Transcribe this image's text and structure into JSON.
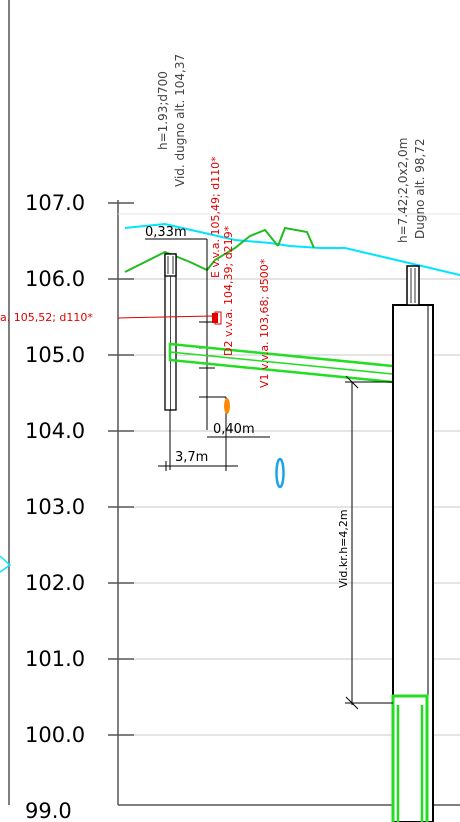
{
  "axis": {
    "ticks": [
      "107.0",
      "106.0",
      "105.0",
      "104.0",
      "103.0",
      "102.0",
      "101.0",
      "100.0",
      "99.0"
    ]
  },
  "labels": {
    "manhole_left_1": "h=1.93;d700",
    "manhole_left_2": "Vid. dugno alt. 104,37",
    "manhole_right_1": "h=7.42;2,0x2,0m",
    "manhole_right_2": "Dugno alt. 98,72",
    "dim_033": "0,33m",
    "dim_040": "0,40m",
    "dim_37": "3,7m",
    "vid_kr": "Vid.kr.h=4,2m",
    "red_e": "E v.v.a. 105,49; d110*",
    "red_d2": "D2 v.v.a. 104,39; d219*",
    "red_v1": "V1 v.v.a. 103,68; d500*",
    "red_left": "a. 105,52; d110*"
  },
  "colors": {
    "cyan": "#00e5ff",
    "green": "#22dd22",
    "red": "#e00000",
    "orange": "#ff8800",
    "blue": "#1aa3e8",
    "grid": "#c8c8c8"
  }
}
